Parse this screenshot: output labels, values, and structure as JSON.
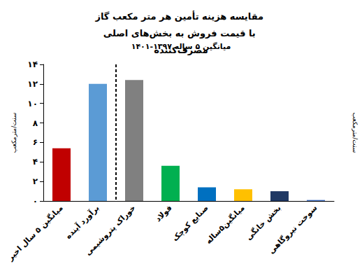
{
  "chart_data": {
    "type": "bar",
    "title": "مقایسه هزینه تأمین هر متر مکعب گاز با قیمت فروش به بخش‌های اصلی مصرف‌کننده",
    "subtitle": "میانگین ۵ ساله ۱۳۹۷-۱۴۰۱",
    "y_label": "سنت/مترمکعب",
    "right_label": "سنت/مترمکعب",
    "categories": [
      "میانگین ۵ سال اخیر",
      "برآورد آینده",
      "خوراک پتروشیمی",
      "فولاد",
      "صنایع کوچک",
      "میانگین۵ساله",
      "بخش خانگی",
      "سوخت نیروگاهی"
    ],
    "values": [
      5.4,
      12.0,
      12.4,
      3.6,
      1.4,
      1.2,
      1.0,
      0.1
    ],
    "colors": [
      "#c00000",
      "#5b9bd5",
      "#808080",
      "#00b050",
      "#0070c0",
      "#ffc000",
      "#1f3864",
      "#4472c4"
    ],
    "ylim": [
      0,
      14
    ],
    "yticks": [
      {
        "value": 0,
        "label": "۰"
      },
      {
        "value": 2,
        "label": "۲"
      },
      {
        "value": 4,
        "label": "۴"
      },
      {
        "value": 6,
        "label": "۶"
      },
      {
        "value": 8,
        "label": "۸"
      },
      {
        "value": 10,
        "label": "۱۰"
      },
      {
        "value": 12,
        "label": "۱۲"
      },
      {
        "value": 14,
        "label": "۱۴"
      }
    ],
    "grid": false
  }
}
